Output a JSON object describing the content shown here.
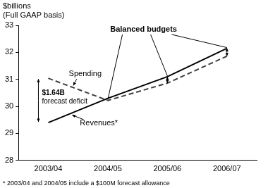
{
  "chart_data": {
    "type": "line",
    "y_label": [
      "$billions",
      "(Full GAAP basis)"
    ],
    "categories": [
      "2003/04",
      "2004/05",
      "2005/06",
      "2006/07"
    ],
    "series": [
      {
        "name": "Spending",
        "color": "#404040",
        "line_style": "dashed",
        "values": [
          31.04,
          30.22,
          30.86,
          31.86
        ]
      },
      {
        "name": "Revenues*",
        "color": "#000000",
        "line_style": "solid",
        "values": [
          29.4,
          30.3,
          31.1,
          32.15
        ]
      }
    ],
    "ylim": [
      28,
      33
    ],
    "yticks": [
      28,
      29,
      30,
      31,
      32,
      33
    ],
    "grid": false,
    "annotations": {
      "deficit": [
        "$1.64B",
        "forecast deficit"
      ],
      "balanced": "Balanced budgets"
    },
    "footnote": "* 2003/04 and 2004/05 include a $100M forecast allowance"
  }
}
